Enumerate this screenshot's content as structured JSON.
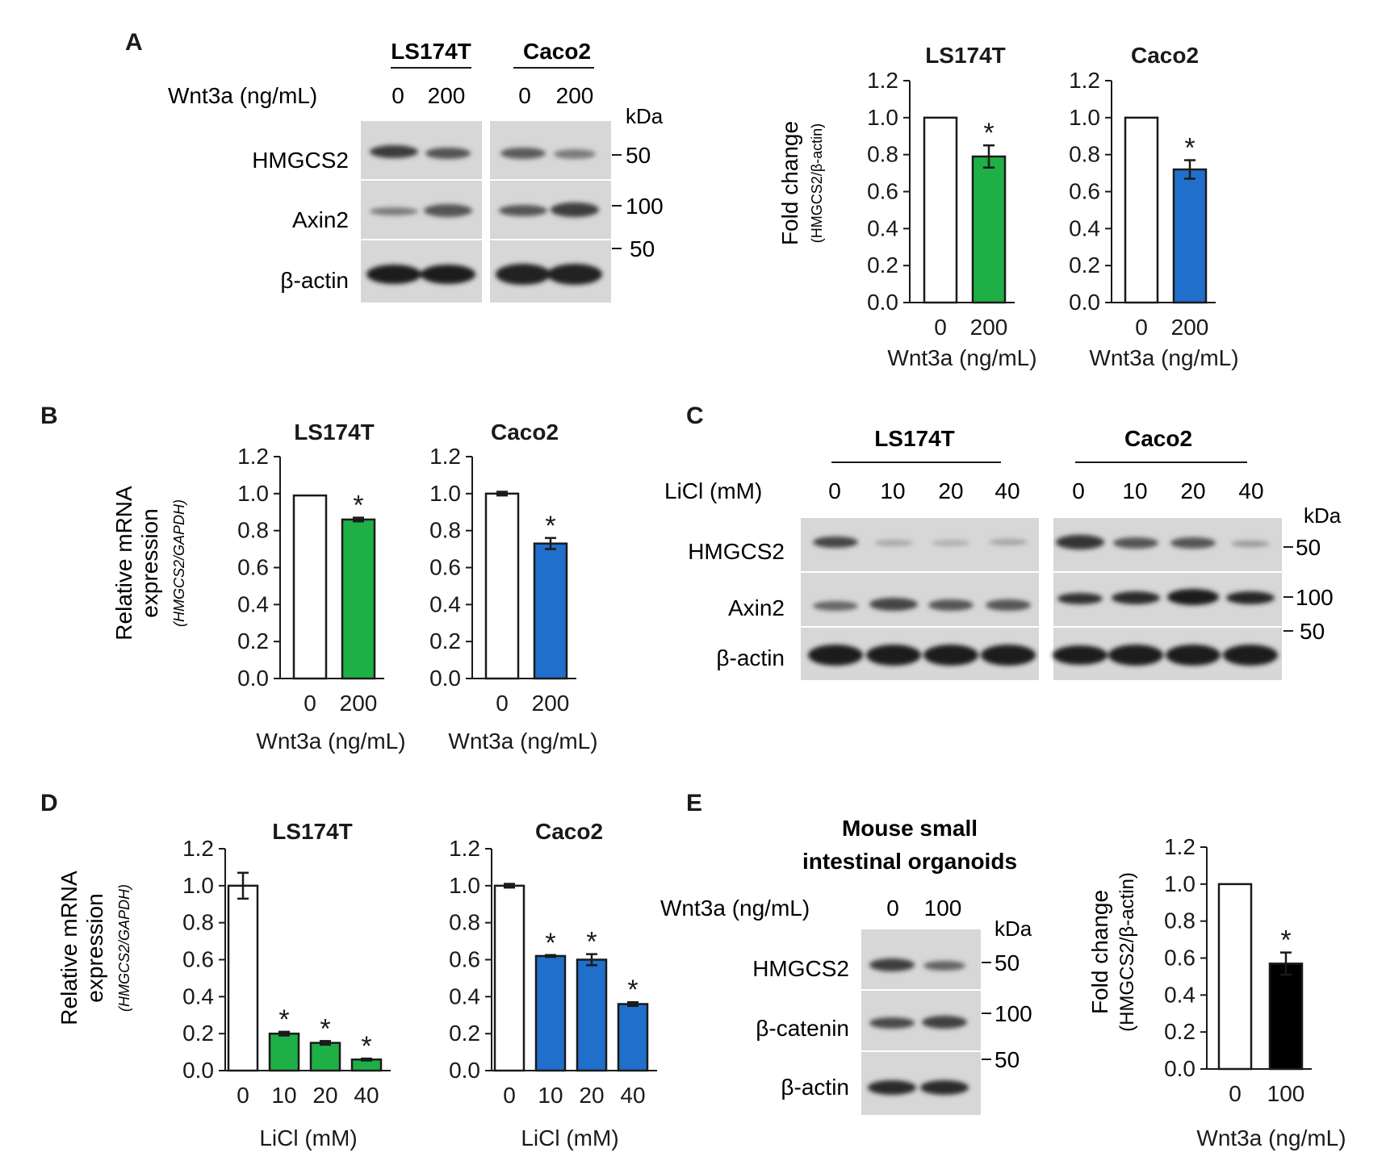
{
  "panel_labels": {
    "a": "A",
    "b": "B",
    "c": "C",
    "d": "D",
    "e": "E"
  },
  "common": {
    "kda": "kDa",
    "wnt_label": "Wnt3a (ng/mL)",
    "licl_label": "LiCl (mM)",
    "lane_0": "0",
    "lane_200": "200",
    "lane_100": "100",
    "lane_10": "10",
    "lane_20": "20",
    "lane_40": "40",
    "hmgcs2": "HMGCS2",
    "axin2": "Axin2",
    "bactin": "β-actin",
    "bcatenin": "β-catenin",
    "m50": "50",
    "m100": "100",
    "ls174t": "LS174T",
    "caco2": "Caco2"
  },
  "panel_a": {
    "ylabel": "Fold change",
    "ylabel_sub": "(HMGCS2/β-actin)"
  },
  "panel_b": {
    "ylabel": "Relative mRNA",
    "ylabel2": "expression",
    "ylabel_sub": "(HMGCS2/GAPDH)"
  },
  "panel_e": {
    "title_line1": "Mouse small",
    "title_line2": "intestinal organoids",
    "ylabel": "Fold change",
    "ylabel_sub": "(HMGCS2/β-actin)"
  },
  "colors": {
    "green": "#1eb046",
    "blue": "#1f6fcb",
    "black": "#000000",
    "white": "#ffffff"
  },
  "chart_data": [
    {
      "id": "A-LS174T",
      "type": "bar",
      "title": "LS174T",
      "xlabel": "Wnt3a (ng/mL)",
      "ylabel": "Fold change (HMGCS2/β-actin)",
      "ylim": [
        0,
        1.2
      ],
      "yticks": [
        "0.0",
        "0.2",
        "0.4",
        "0.6",
        "0.8",
        "1.0",
        "1.2"
      ],
      "categories": [
        "0",
        "200"
      ],
      "values": [
        1.0,
        0.79
      ],
      "errors": [
        0,
        0.06
      ],
      "significant": [
        false,
        true
      ],
      "fills": [
        "white",
        "green"
      ]
    },
    {
      "id": "A-Caco2",
      "type": "bar",
      "title": "Caco2",
      "xlabel": "Wnt3a (ng/mL)",
      "ylabel": "",
      "ylim": [
        0,
        1.2
      ],
      "yticks": [
        "0.0",
        "0.2",
        "0.4",
        "0.6",
        "0.8",
        "1.0",
        "1.2"
      ],
      "categories": [
        "0",
        "200"
      ],
      "values": [
        1.0,
        0.72
      ],
      "errors": [
        0,
        0.05
      ],
      "significant": [
        false,
        true
      ],
      "fills": [
        "white",
        "blue"
      ]
    },
    {
      "id": "B-LS174T",
      "type": "bar",
      "title": "LS174T",
      "xlabel": "Wnt3a (ng/mL)",
      "ylabel": "Relative mRNA expression (HMGCS2/GAPDH)",
      "ylim": [
        0,
        1.2
      ],
      "yticks": [
        "0.0",
        "0.2",
        "0.4",
        "0.6",
        "0.8",
        "1.0",
        "1.2"
      ],
      "categories": [
        "0",
        "200"
      ],
      "values": [
        0.99,
        0.86
      ],
      "errors": [
        0,
        0.01
      ],
      "significant": [
        false,
        true
      ],
      "fills": [
        "white",
        "green"
      ]
    },
    {
      "id": "B-Caco2",
      "type": "bar",
      "title": "Caco2",
      "xlabel": "Wnt3a (ng/mL)",
      "ylabel": "",
      "ylim": [
        0,
        1.2
      ],
      "yticks": [
        "0.0",
        "0.2",
        "0.4",
        "0.6",
        "0.8",
        "1.0",
        "1.2"
      ],
      "categories": [
        "0",
        "200"
      ],
      "values": [
        1.0,
        0.73
      ],
      "errors": [
        0.01,
        0.03
      ],
      "significant": [
        false,
        true
      ],
      "fills": [
        "white",
        "blue"
      ]
    },
    {
      "id": "D-LS174T",
      "type": "bar",
      "title": "LS174T",
      "xlabel": "LiCl (mM)",
      "ylabel": "Relative mRNA expression (HMGCS2/GAPDH)",
      "ylim": [
        0,
        1.2
      ],
      "yticks": [
        "0.0",
        "0.2",
        "0.4",
        "0.6",
        "0.8",
        "1.0",
        "1.2"
      ],
      "categories": [
        "0",
        "10",
        "20",
        "40"
      ],
      "values": [
        1.0,
        0.2,
        0.15,
        0.06
      ],
      "errors": [
        0.07,
        0.01,
        0.01,
        0.005
      ],
      "significant": [
        false,
        true,
        true,
        true
      ],
      "fills": [
        "white",
        "green",
        "green",
        "green"
      ]
    },
    {
      "id": "D-Caco2",
      "type": "bar",
      "title": "Caco2",
      "xlabel": "LiCl (mM)",
      "ylabel": "",
      "ylim": [
        0,
        1.2
      ],
      "yticks": [
        "0.0",
        "0.2",
        "0.4",
        "0.6",
        "0.8",
        "1.0",
        "1.2"
      ],
      "categories": [
        "0",
        "10",
        "20",
        "40"
      ],
      "values": [
        1.0,
        0.62,
        0.6,
        0.36
      ],
      "errors": [
        0.01,
        0.005,
        0.03,
        0.01
      ],
      "significant": [
        false,
        true,
        true,
        true
      ],
      "fills": [
        "white",
        "blue",
        "blue",
        "blue"
      ]
    },
    {
      "id": "E",
      "type": "bar",
      "title": "",
      "xlabel": "Wnt3a (ng/mL)",
      "ylabel": "Fold change (HMGCS2/β-actin)",
      "ylim": [
        0,
        1.2
      ],
      "yticks": [
        "0.0",
        "0.2",
        "0.4",
        "0.6",
        "0.8",
        "1.0",
        "1.2"
      ],
      "categories": [
        "0",
        "100"
      ],
      "values": [
        1.0,
        0.57
      ],
      "errors": [
        0,
        0.06
      ],
      "significant": [
        false,
        true
      ],
      "fills": [
        "white",
        "black"
      ]
    }
  ]
}
